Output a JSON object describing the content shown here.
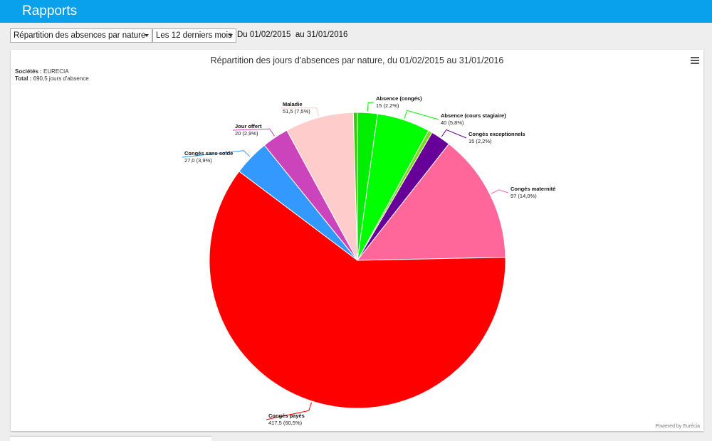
{
  "header": {
    "title": "Rapports"
  },
  "filters": {
    "report_select": "Répartition des absences par nature",
    "period_select": "Les 12 derniers mois",
    "date_range": "Du 01/02/2015  au 31/01/2016"
  },
  "card": {
    "info_company_label": "Sociétés :",
    "info_company_value": " EURECIA",
    "info_total_label": "Total :",
    "info_total_value": " 690,5 jours d'absence",
    "powered": "Powered by Eurécia"
  },
  "chart_data": {
    "type": "pie",
    "title": "Répartition des jours d'absences par nature, du 01/02/2015 au 31/01/2016",
    "unit": "jours",
    "slices": [
      {
        "name": "Absence (congés)",
        "value": 15,
        "label": "15 (2,2%)",
        "color": "#00ee00"
      },
      {
        "name": "Absence (cours stagiaire)",
        "value": 40,
        "label": "40 (5,8%)",
        "color": "#00ff00"
      },
      {
        "name": "",
        "value": 3,
        "label": "",
        "color": "#7ddb1a"
      },
      {
        "name": "Congés exceptionnels",
        "value": 15,
        "label": "15 (2,2%)",
        "color": "#660099"
      },
      {
        "name": "Congés maternité",
        "value": 97,
        "label": "97 (14,0%)",
        "color": "#ff6699"
      },
      {
        "name": "Congés payés",
        "value": 417.5,
        "label": "417,5 (60,5%)",
        "color": "#ff0000"
      },
      {
        "name": "Congés sans solde",
        "value": 27.0,
        "label": "27,0 (3,9%)",
        "color": "#3399ff"
      },
      {
        "name": "Jour offert",
        "value": 20,
        "label": "20 (2,9%)",
        "color": "#cc44bb"
      },
      {
        "name": "Maladie",
        "value": 51.5,
        "label": "51,5 (7,5%)",
        "color": "#ffcccc"
      },
      {
        "name": "",
        "value": 3,
        "label": "",
        "color": "#33cc00"
      }
    ]
  }
}
